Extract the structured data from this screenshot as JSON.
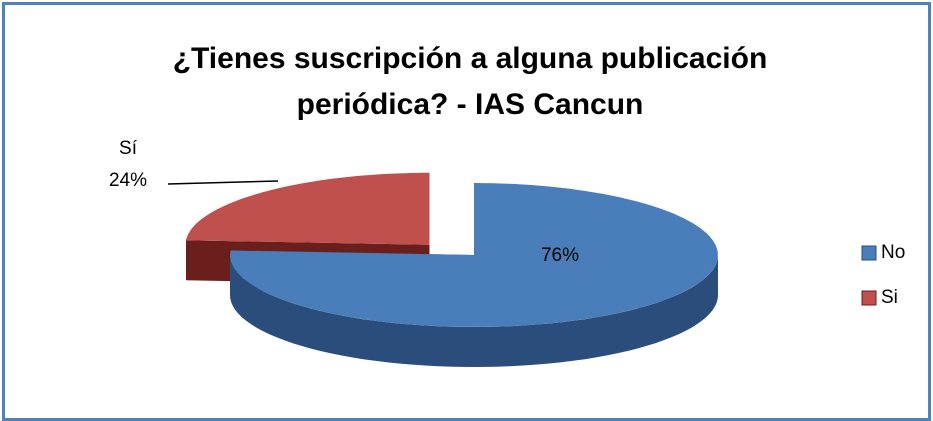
{
  "chart_data": {
    "type": "pie3d",
    "title": "¿Tienes suscripción a alguna publicación periódica? - IAS Cancun",
    "categories": [
      "No",
      "Si"
    ],
    "values": [
      76,
      24
    ],
    "value_labels": [
      "76%",
      "24%"
    ],
    "annotations": [
      "Sí"
    ],
    "colors": [
      "#4a7ebb",
      "#c0504d"
    ],
    "side_colors": [
      "#2a4d7c",
      "#6a1f1d"
    ],
    "exploded": [
      false,
      true
    ],
    "legend": "right"
  }
}
